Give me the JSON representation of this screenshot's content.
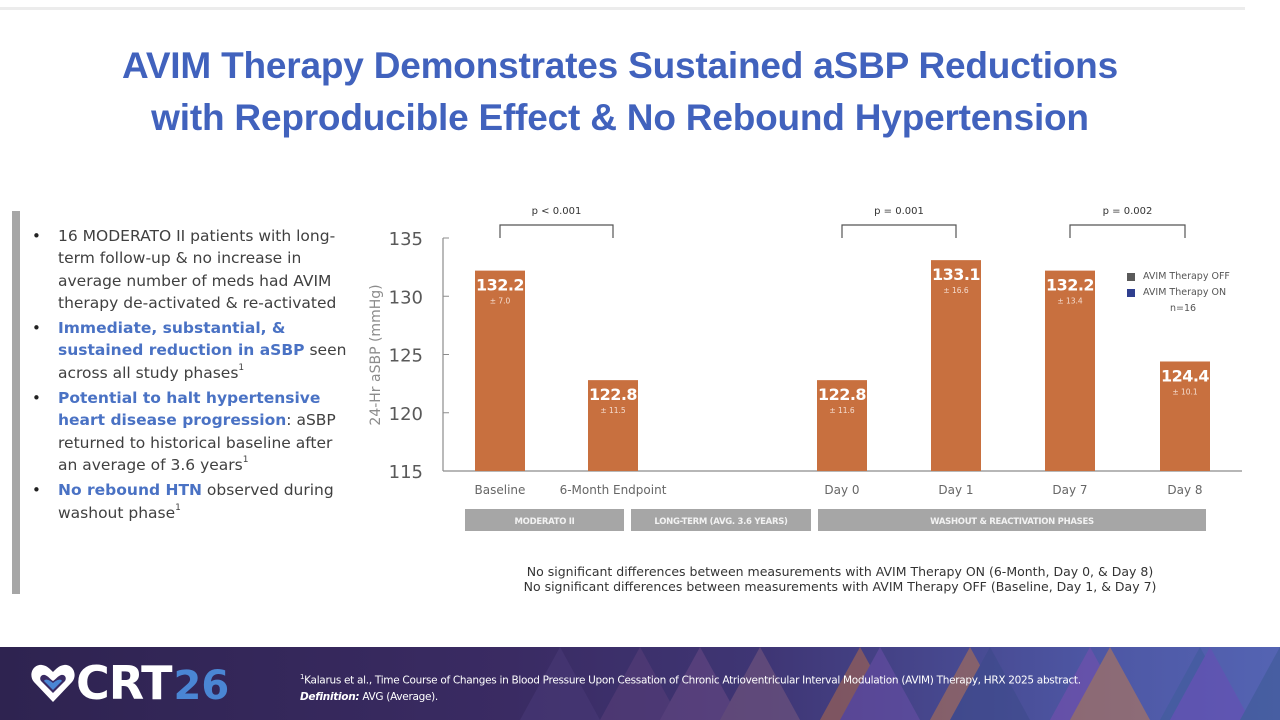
{
  "title": {
    "line1": "AVIM Therapy Demonstrates Sustained aSBP Reductions",
    "line2": "with Reproducible Effect & No Rebound Hypertension"
  },
  "bullets": [
    {
      "parts": [
        {
          "text": "16 MODERATO II patients with long-term follow-up & no increase in average number of meds had AVIM therapy de-activated & re-activated",
          "highlight": false
        }
      ]
    },
    {
      "parts": [
        {
          "text": "Immediate, substantial, & sustained reduction in aSBP",
          "highlight": true
        },
        {
          "text": " seen across all study phases",
          "highlight": false
        },
        {
          "text": "1",
          "sup": true
        }
      ]
    },
    {
      "parts": [
        {
          "text": "Potential to halt hypertensive heart disease progression",
          "highlight": true
        },
        {
          "text": ": aSBP returned to historical baseline after an average of 3.6 years",
          "highlight": false
        },
        {
          "text": "1",
          "sup": true
        }
      ]
    },
    {
      "parts": [
        {
          "text": "No rebound HTN",
          "highlight": true
        },
        {
          "text": " observed during washout phase",
          "highlight": false
        },
        {
          "text": "1",
          "sup": true
        }
      ]
    }
  ],
  "chart_data": {
    "type": "bar",
    "title": "",
    "xlabel": "",
    "ylabel": "24-Hr aSBP (mmHg)",
    "ylim": [
      115,
      135
    ],
    "yticks": [
      115,
      120,
      125,
      130,
      135
    ],
    "grid": false,
    "categories": [
      "Baseline",
      "6-Month Endpoint",
      "Day 0",
      "Day 1",
      "Day 7",
      "Day 8"
    ],
    "values": [
      132.2,
      122.8,
      122.8,
      133.1,
      132.2,
      124.4
    ],
    "value_labels": [
      "132.2",
      "122.8",
      "122.8",
      "133.1",
      "132.2",
      "124.4"
    ],
    "sd_labels": [
      "± 7.0",
      "± 11.5",
      "± 11.6",
      "± 16.6",
      "± 13.4",
      "± 10.1"
    ],
    "therapy": [
      "OFF",
      "ON",
      "ON",
      "OFF",
      "OFF",
      "ON"
    ],
    "bar_color": "#c8703f",
    "phases": [
      {
        "label": "MODERATO II",
        "categories": [
          "Baseline",
          "6-Month Endpoint"
        ]
      },
      {
        "label": "LONG-TERM (AVG. 3.6 YEARS)",
        "categories": []
      },
      {
        "label": "WASHOUT & REACTIVATION PHASES",
        "categories": [
          "Day 0",
          "Day 1",
          "Day 7",
          "Day 8"
        ]
      }
    ],
    "comparisons": [
      {
        "label": "p < 0.001",
        "from": "Baseline",
        "to": "6-Month Endpoint"
      },
      {
        "label": "p = 0.001",
        "from": "Day 0",
        "to": "Day 1"
      },
      {
        "label": "p = 0.002",
        "from": "Day 7",
        "to": "Day 8"
      }
    ],
    "legend": {
      "position": "right",
      "entries": [
        {
          "label": "AVIM Therapy OFF",
          "color": "#5a5a5a"
        },
        {
          "label": "AVIM Therapy ON",
          "color": "#2f3f8f"
        }
      ],
      "note": "n=16"
    }
  },
  "notes": [
    "No significant differences between measurements with AVIM Therapy ON (6-Month, Day 0, & Day 8)",
    "No significant differences between measurements with AVIM Therapy OFF (Baseline, Day 1, & Day 7)"
  ],
  "footer": {
    "logo_text": "CRT",
    "logo_year": "26",
    "citation_sup": "1",
    "citation": "Kalarus et al., Time Course of Changes in Blood Pressure Upon Cessation of Chronic Atrioventricular Interval Modulation (AVIM) Therapy, HRX 2025 abstract.",
    "definition_label": "Definition:",
    "definition_text": " AVG (Average)."
  },
  "colors": {
    "title": "#4162bd",
    "highlight": "#4a72c4",
    "bar": "#c8703f",
    "phase_box": "#a6a6a6",
    "footer_bg": "#2e2350",
    "logo_year": "#4a86d4"
  }
}
